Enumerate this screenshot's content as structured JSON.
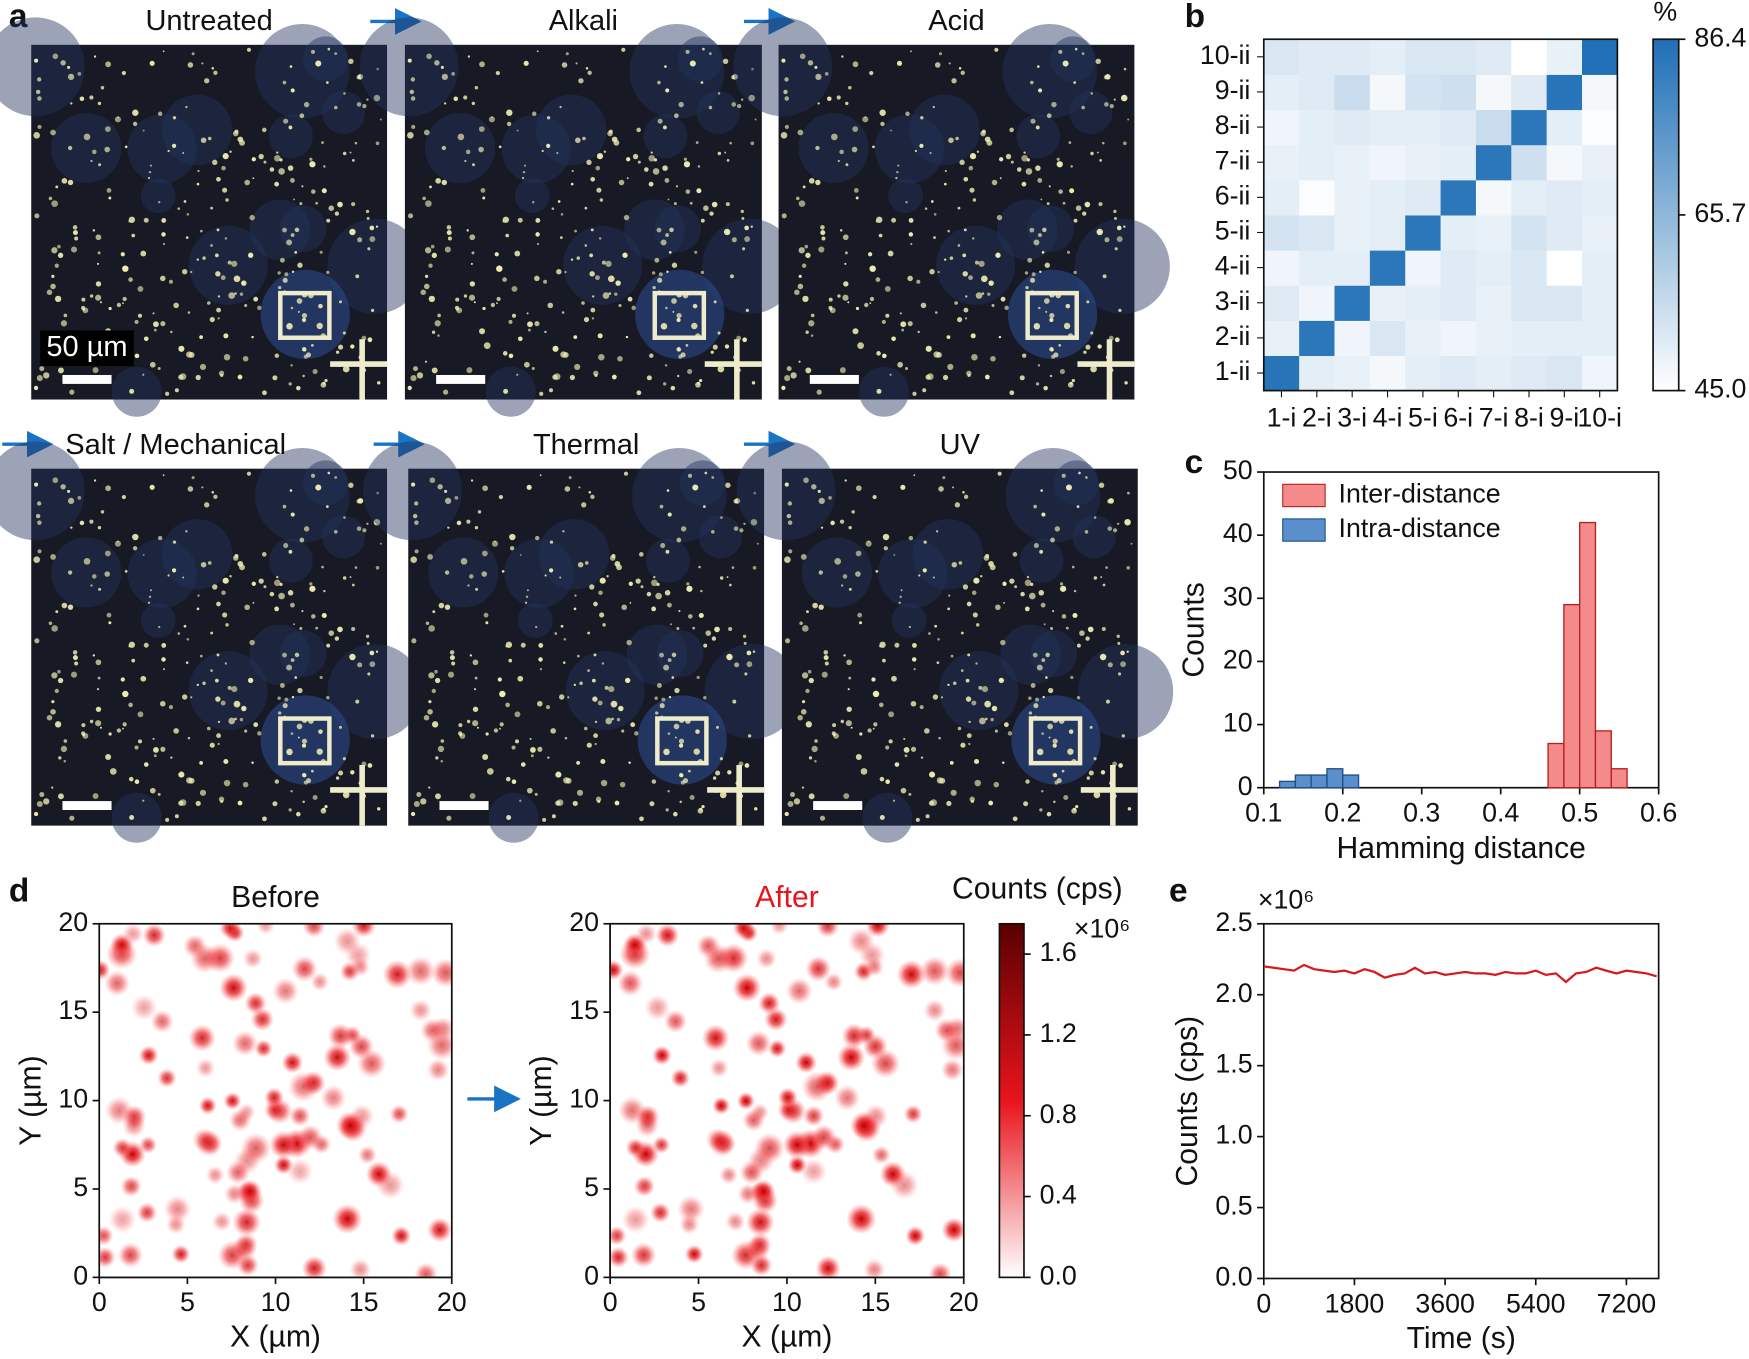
{
  "panel_labels": [
    "a",
    "b",
    "c",
    "d",
    "e"
  ],
  "photos": {
    "titles": [
      "Untreated",
      "Alkali",
      "Acid",
      "Salt / Mechanical",
      "Thermal",
      "UV"
    ],
    "scale_bar": "50 µm"
  },
  "chart_data": [
    {
      "type": "heatmap",
      "x_categories": [
        "1-i",
        "2-i",
        "3-i",
        "4-i",
        "5-i",
        "6-i",
        "7-i",
        "8-i",
        "9-i",
        "10-i"
      ],
      "y_categories": [
        "1-ii",
        "2-ii",
        "3-ii",
        "4-ii",
        "5-ii",
        "6-ii",
        "7-ii",
        "8-ii",
        "9-ii",
        "10-ii"
      ],
      "values": [
        [
          85,
          50,
          49,
          47,
          50,
          51,
          50,
          51,
          52,
          48
        ],
        [
          49,
          84,
          48,
          52,
          49,
          48,
          49,
          50,
          50,
          50
        ],
        [
          51,
          48,
          84,
          49,
          50,
          51,
          49,
          52,
          52,
          50
        ],
        [
          48,
          50,
          50,
          84,
          48,
          51,
          50,
          52,
          45,
          50
        ],
        [
          53,
          52,
          49,
          50,
          84,
          50,
          49,
          53,
          51,
          49
        ],
        [
          50,
          46,
          49,
          50,
          51,
          84,
          47,
          50,
          51,
          50
        ],
        [
          49,
          50,
          49,
          48,
          49,
          50,
          84,
          54,
          47,
          49
        ],
        [
          48,
          50,
          51,
          50,
          50,
          51,
          55,
          84,
          50,
          46
        ],
        [
          50,
          51,
          55,
          47,
          53,
          54,
          47,
          51,
          85,
          47
        ],
        [
          52,
          51,
          51,
          50,
          52,
          52,
          51,
          45,
          49,
          86
        ]
      ],
      "colorbar_title": "%",
      "zlim": [
        45,
        86.4
      ],
      "zticks": [
        {
          "value": 45,
          "label": "45.0"
        },
        65.7,
        86.4
      ],
      "colors": [
        "#ffffff",
        "#1f6fb6"
      ]
    },
    {
      "type": "histogram",
      "xlabel": "Hamming distance",
      "ylabel": "Counts",
      "xlim": [
        0.1,
        0.6
      ],
      "xticks": [
        0.1,
        0.2,
        0.3,
        0.4,
        0.5,
        0.6
      ],
      "ylim": [
        0,
        50
      ],
      "yticks": [
        0,
        10,
        20,
        30,
        40,
        50
      ],
      "series": [
        {
          "name": "Inter-distance",
          "color": "#f58a8a",
          "edge": "#b22222",
          "bins": [
            0.46,
            0.48,
            0.5,
            0.52,
            0.54,
            0.56
          ],
          "values": [
            7,
            29,
            42,
            9,
            3
          ]
        },
        {
          "name": "Intra-distance",
          "color": "#5b8fcc",
          "edge": "#1f4f8a",
          "bins": [
            0.12,
            0.14,
            0.16,
            0.18,
            0.2,
            0.22
          ],
          "values": [
            1,
            2,
            2,
            3,
            2
          ]
        }
      ]
    },
    {
      "type": "map",
      "title": "Before",
      "title_color": "#111111",
      "xlabel": "X (µm)",
      "ylabel": "Y (µm)",
      "xlim": [
        0,
        20
      ],
      "xticks": [
        0,
        5,
        10,
        15,
        20
      ],
      "ylim": [
        0,
        20
      ],
      "yticks": [
        0,
        5,
        10,
        15,
        20
      ]
    },
    {
      "type": "map",
      "title": "After",
      "title_color": "#e8141c",
      "xlabel": "X (µm)",
      "ylabel": "Y (µm)",
      "xlim": [
        0,
        20
      ],
      "xticks": [
        0,
        5,
        10,
        15,
        20
      ],
      "ylim": [
        0,
        20
      ],
      "yticks": [
        0,
        5,
        10,
        15,
        20
      ],
      "colorbar_title": "Counts (cps)",
      "colorbar_multiplier": "×10⁶",
      "zlim": [
        0,
        1.75
      ],
      "zticks": [
        {
          "value": 0,
          "label": "0.0"
        },
        0.4,
        0.8,
        1.2,
        1.6
      ]
    },
    {
      "type": "line",
      "xlabel": "Time (s)",
      "ylabel": "Counts (cps)",
      "y_multiplier": "×10⁶",
      "xlim": [
        0,
        7840
      ],
      "xticks": [
        0,
        1800,
        3600,
        5400,
        7200
      ],
      "ylim": [
        0,
        2.5
      ],
      "yticks": [
        {
          "value": 0,
          "label": "0.0"
        },
        0.5,
        {
          "value": 1,
          "label": "1.0"
        },
        1.5,
        {
          "value": 2,
          "label": "2.0"
        },
        2.5
      ],
      "color": "#d7191c",
      "x": [
        0,
        200,
        400,
        600,
        800,
        1000,
        1200,
        1400,
        1600,
        1800,
        2000,
        2200,
        2400,
        2600,
        2800,
        3000,
        3200,
        3400,
        3600,
        3800,
        4000,
        4200,
        4400,
        4600,
        4800,
        5000,
        5200,
        5400,
        5600,
        5800,
        6000,
        6200,
        6400,
        6600,
        6800,
        7000,
        7200,
        7400,
        7600,
        7800
      ],
      "values": [
        2.2,
        2.19,
        2.18,
        2.17,
        2.21,
        2.18,
        2.17,
        2.16,
        2.17,
        2.15,
        2.18,
        2.16,
        2.12,
        2.14,
        2.15,
        2.19,
        2.15,
        2.16,
        2.14,
        2.15,
        2.16,
        2.15,
        2.15,
        2.14,
        2.16,
        2.15,
        2.15,
        2.17,
        2.14,
        2.15,
        2.09,
        2.15,
        2.16,
        2.19,
        2.17,
        2.15,
        2.17,
        2.16,
        2.15,
        2.13
      ]
    }
  ]
}
